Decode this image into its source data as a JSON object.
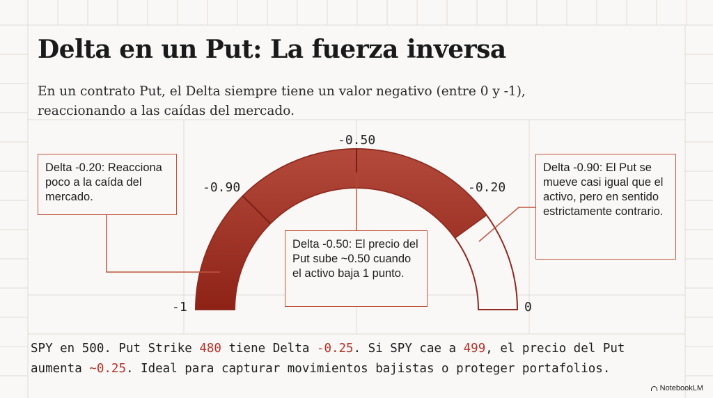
{
  "title": "Delta en un Put: La fuerza inversa",
  "subtitle": "En un contrato Put, el Delta siempre tiene un valor negativo (entre 0 y -1), reaccionando a las caídas del mercado.",
  "gauge": {
    "colors": {
      "fill": "#b34a3b",
      "fill_dark": "#8e2217",
      "outline": "#8e2a20",
      "divider": "#7a1f16",
      "leader": "#c0553e"
    },
    "filled_fraction": 0.8,
    "labels": {
      "min": "-1",
      "left": "-0.90",
      "top": "-0.50",
      "right": "-0.20",
      "max": "0"
    }
  },
  "callouts": {
    "left": "Delta -0.20: Reacciona poco a la caída del mercado.",
    "middle": "Delta -0.50: El precio del Put sube ~0.50 cuando el activo baja 1 punto.",
    "right": "Delta -0.90: El Put se mueve casi igual que el activo, pero en sentido estrictamente contrario."
  },
  "bottom": {
    "t1": "SPY en 500. Put Strike ",
    "v1": "480",
    "t2": " tiene Delta ",
    "v2": "-0.25",
    "t3": ". Si SPY cae a ",
    "v3": "499",
    "t4": ", el precio del Put",
    "t5": "aumenta ",
    "v4": "~0.25",
    "t6": ". Ideal para capturar movimientos bajistas o proteger portafolios."
  },
  "brand": "NotebookLM"
}
